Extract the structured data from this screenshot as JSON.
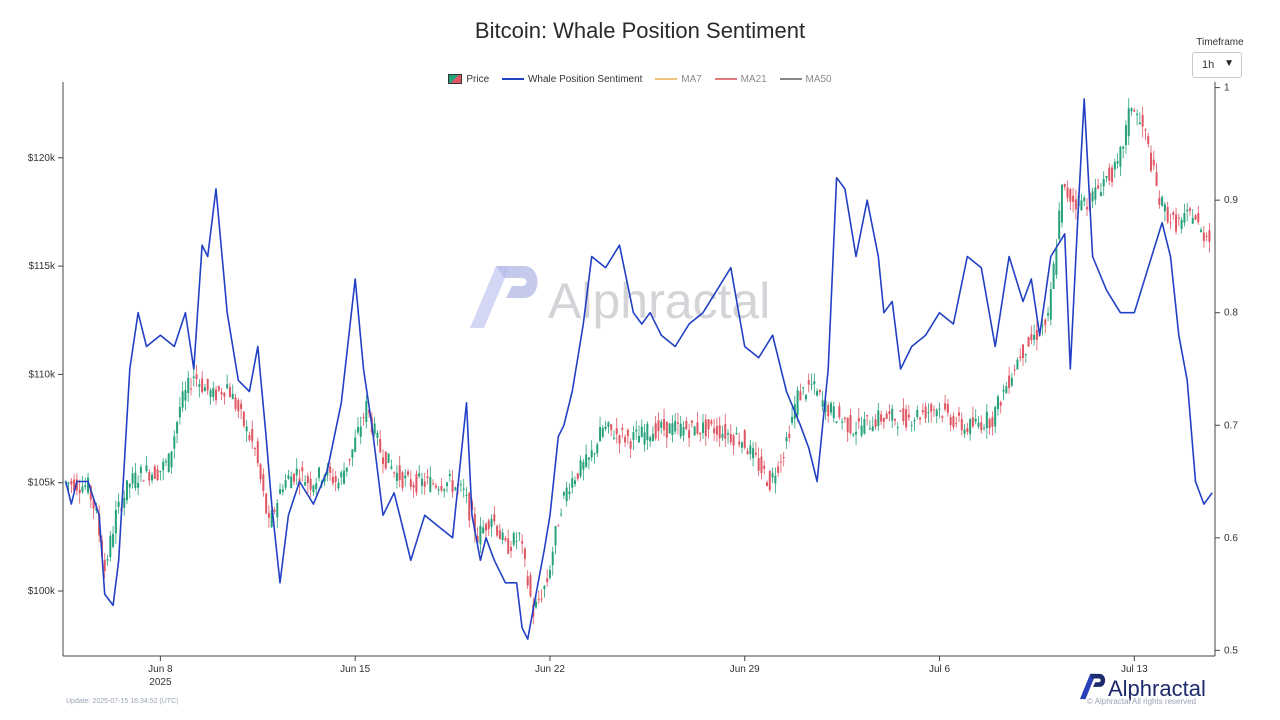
{
  "title": "Bitcoin: Whale Position Sentiment",
  "timeframe": {
    "label": "Timeframe",
    "selected": "1h"
  },
  "legend": [
    {
      "name": "Price",
      "color": "#26a17b"
    },
    {
      "name": "Whale Position Sentiment",
      "color": "#2240c4"
    },
    {
      "name": "MA7",
      "color": "#f0c080"
    },
    {
      "name": "MA21",
      "color": "#e07b7b"
    },
    {
      "name": "MA50",
      "color": "#888888"
    }
  ],
  "footer": {
    "update": "Update: 2025-07-15 16:34:52 (UTC)",
    "copyright": "© Alphractal All rights reserved",
    "brand": "Alphractal"
  },
  "watermark": "Alphractal",
  "colors": {
    "up": "#26a17b",
    "down": "#e05562",
    "sentiment": "#2240c4",
    "axis": "#333333"
  },
  "chart_data": {
    "type": "line",
    "title": "Bitcoin: Whale Position Sentiment",
    "x_ticks": [
      {
        "label": "Jun 8",
        "sub": "2025",
        "day": 8
      },
      {
        "label": "Jun 15",
        "sub": "",
        "day": 15
      },
      {
        "label": "Jun 22",
        "sub": "",
        "day": 22
      },
      {
        "label": "Jun 29",
        "sub": "",
        "day": 29
      },
      {
        "label": "Jul 6",
        "sub": "",
        "day": 36
      },
      {
        "label": "Jul 13",
        "sub": "",
        "day": 43
      }
    ],
    "x_range": [
      4.5,
      45.9
    ],
    "y_left": {
      "range": [
        97.0,
        123.5
      ],
      "ticks": [
        100,
        105,
        110,
        115,
        120
      ],
      "tick_labels": [
        "$100k",
        "$105k",
        "$110k",
        "$115k",
        "$120k"
      ]
    },
    "y_right": {
      "range": [
        0.495,
        1.005
      ],
      "ticks": [
        0.5,
        0.6,
        0.7,
        0.8,
        0.9,
        1.0
      ],
      "tick_labels": [
        "0.5",
        "0.6",
        "0.7",
        "0.8",
        "0.9",
        "1"
      ]
    },
    "series": [
      {
        "name": "Price",
        "type": "candlestick",
        "axis": "left",
        "x": [
          4.6,
          5.0,
          5.5,
          5.8,
          6.1,
          6.5,
          7.0,
          7.5,
          8.0,
          8.4,
          8.8,
          9.3,
          9.6,
          10.0,
          10.5,
          11.0,
          11.5,
          12.0,
          12.5,
          13.0,
          13.5,
          14.0,
          14.5,
          15.0,
          15.5,
          16.0,
          16.5,
          17.0,
          17.5,
          18.0,
          18.5,
          19.0,
          19.5,
          20.0,
          20.5,
          21.0,
          21.5,
          22.0,
          22.5,
          22.8,
          23.1,
          23.5,
          24.0,
          25.0,
          26.0,
          27.0,
          28.0,
          29.0,
          30.0,
          30.5,
          31.0,
          31.5,
          32.0,
          33.0,
          34.0,
          34.5,
          35.0,
          36.0,
          37.0,
          38.0,
          39.0,
          40.0,
          40.5,
          41.0,
          41.5,
          42.0,
          42.5,
          43.0,
          43.5,
          44.0,
          44.5,
          44.8,
          45.2,
          45.5,
          45.8
        ],
        "y": [
          105.0,
          105.0,
          104.8,
          103.5,
          101.0,
          103.5,
          105.0,
          105.5,
          105.5,
          106.0,
          108.5,
          110.0,
          109.5,
          109.0,
          109.5,
          108.0,
          106.5,
          103.0,
          105.0,
          105.5,
          105.0,
          105.5,
          105.0,
          106.5,
          108.5,
          106.5,
          105.5,
          105.0,
          105.0,
          105.0,
          105.0,
          104.5,
          102.5,
          103.5,
          102.0,
          102.5,
          99.0,
          100.5,
          104.0,
          105.0,
          105.5,
          106.0,
          107.5,
          107.0,
          107.5,
          107.5,
          107.5,
          107.0,
          105.0,
          106.5,
          109.0,
          109.5,
          108.5,
          107.5,
          108.0,
          108.0,
          108.0,
          108.5,
          107.5,
          108.0,
          111.0,
          112.5,
          118.5,
          118.0,
          118.0,
          119.0,
          119.5,
          122.5,
          121.0,
          118.0,
          117.0,
          117.0,
          117.5,
          116.5,
          116.5
        ]
      },
      {
        "name": "Whale Position Sentiment",
        "type": "line",
        "axis": "right",
        "x": [
          4.6,
          4.8,
          5.0,
          5.4,
          5.8,
          6.0,
          6.3,
          6.5,
          6.9,
          7.2,
          7.5,
          8.0,
          8.5,
          8.9,
          9.2,
          9.5,
          9.7,
          10.0,
          10.4,
          10.8,
          11.2,
          11.5,
          11.8,
          12.0,
          12.3,
          12.6,
          13.0,
          13.5,
          14.0,
          14.5,
          15.0,
          15.3,
          15.6,
          16.0,
          16.4,
          16.8,
          17.0,
          17.5,
          18.0,
          18.5,
          19.0,
          19.2,
          19.5,
          19.7,
          20.0,
          20.4,
          20.8,
          21.0,
          21.2,
          21.5,
          21.8,
          22.0,
          22.3,
          22.5,
          22.8,
          23.0,
          23.2,
          23.5,
          24.0,
          24.5,
          25.0,
          25.3,
          25.6,
          26.0,
          26.5,
          27.0,
          27.5,
          28.0,
          28.5,
          29.0,
          29.5,
          30.0,
          30.5,
          31.0,
          31.3,
          31.6,
          32.0,
          32.3,
          32.6,
          33.0,
          33.4,
          33.8,
          34.0,
          34.3,
          34.6,
          35.0,
          35.5,
          36.0,
          36.5,
          37.0,
          37.5,
          38.0,
          38.5,
          39.0,
          39.3,
          39.6,
          40.0,
          40.5,
          40.7,
          41.0,
          41.2,
          41.5,
          42.0,
          42.5,
          43.0,
          43.5,
          44.0,
          44.3,
          44.6,
          44.9,
          45.2,
          45.5,
          45.8
        ],
        "y": [
          0.65,
          0.63,
          0.65,
          0.65,
          0.62,
          0.55,
          0.54,
          0.58,
          0.75,
          0.8,
          0.77,
          0.78,
          0.77,
          0.8,
          0.75,
          0.86,
          0.85,
          0.91,
          0.8,
          0.74,
          0.73,
          0.77,
          0.69,
          0.63,
          0.56,
          0.62,
          0.65,
          0.63,
          0.66,
          0.72,
          0.83,
          0.75,
          0.7,
          0.62,
          0.64,
          0.6,
          0.58,
          0.62,
          0.61,
          0.6,
          0.72,
          0.62,
          0.58,
          0.6,
          0.58,
          0.56,
          0.56,
          0.52,
          0.51,
          0.55,
          0.59,
          0.62,
          0.69,
          0.7,
          0.73,
          0.76,
          0.79,
          0.85,
          0.84,
          0.86,
          0.8,
          0.79,
          0.8,
          0.78,
          0.77,
          0.79,
          0.8,
          0.82,
          0.84,
          0.77,
          0.76,
          0.78,
          0.73,
          0.7,
          0.68,
          0.65,
          0.75,
          0.92,
          0.91,
          0.85,
          0.9,
          0.85,
          0.8,
          0.81,
          0.75,
          0.77,
          0.78,
          0.8,
          0.79,
          0.85,
          0.84,
          0.77,
          0.85,
          0.81,
          0.83,
          0.78,
          0.85,
          0.87,
          0.75,
          0.9,
          0.99,
          0.85,
          0.82,
          0.8,
          0.8,
          0.84,
          0.88,
          0.85,
          0.78,
          0.74,
          0.65,
          0.63,
          0.64
        ]
      },
      {
        "name": "MA7",
        "type": "line",
        "axis": "left",
        "hidden": true,
        "values": []
      },
      {
        "name": "MA21",
        "type": "line",
        "axis": "left",
        "hidden": true,
        "values": []
      },
      {
        "name": "MA50",
        "type": "line",
        "axis": "left",
        "hidden": true,
        "values": []
      }
    ],
    "grid": false,
    "legend_position": "top-center"
  }
}
